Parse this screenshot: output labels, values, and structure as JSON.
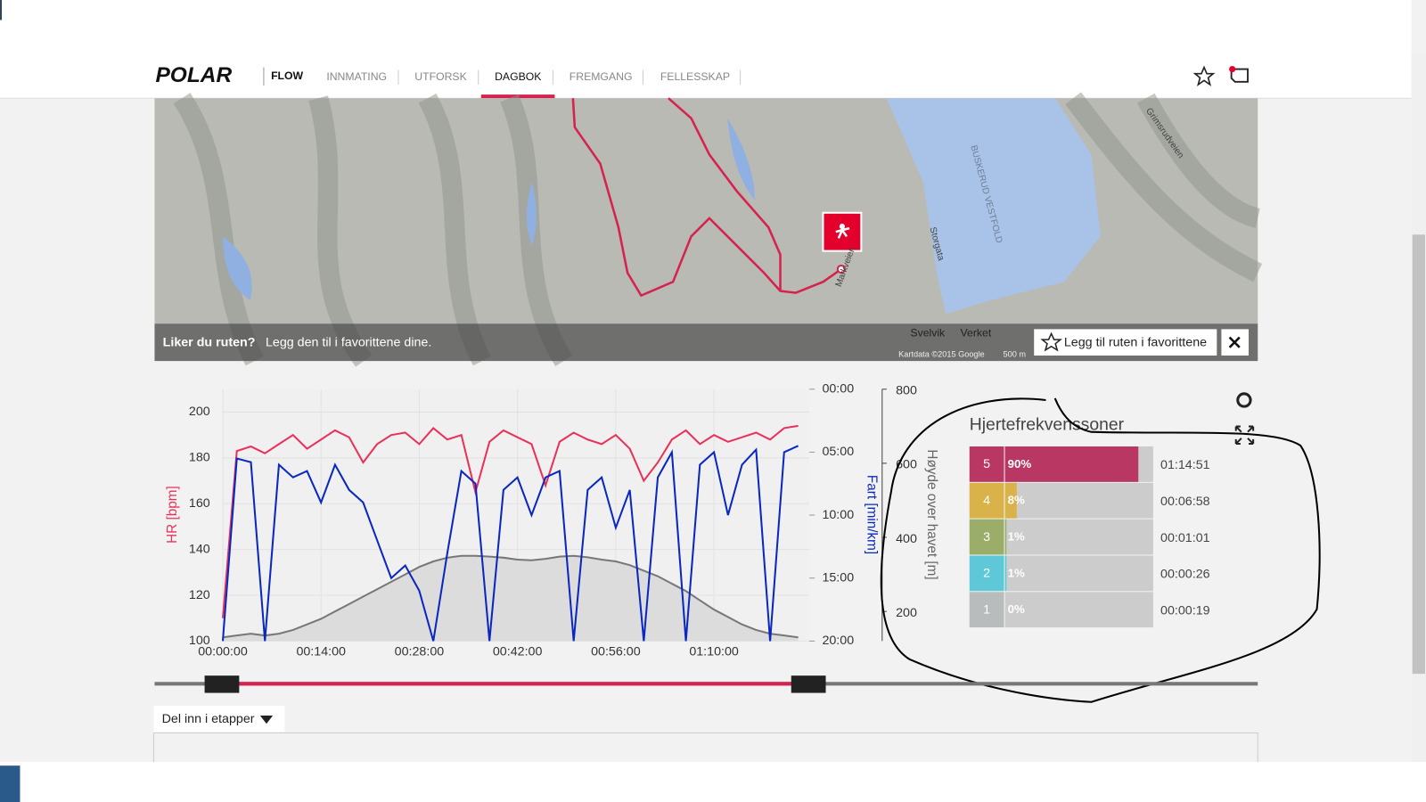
{
  "nav": {
    "logo": "POLAR",
    "product": "FLOW",
    "items": [
      "INNMATING",
      "UTFORSK",
      "DAGBOK",
      "FREMGANG",
      "FELLESSKAP"
    ],
    "active": 2
  },
  "map": {
    "prompt_bold": "Liker du ruten?",
    "prompt": "Legg den til i favorittene dine.",
    "button": "Legg til ruten i favorittene",
    "places": [
      "Svelvik",
      "Verket"
    ],
    "roads": [
      "Storgata",
      "Markveien",
      "Grimsrudveien"
    ],
    "border": "BUSKERUD VESTFOLD",
    "copyright": "Kartdata ©2015 Google",
    "scale": "500 m"
  },
  "chart": {
    "type": "line",
    "x": [
      0,
      2,
      4,
      6,
      8,
      10,
      12,
      14,
      16,
      18,
      20,
      22,
      24,
      26,
      28,
      30,
      32,
      34,
      36,
      38,
      40,
      42,
      44,
      46,
      48,
      50,
      52,
      54,
      56,
      58,
      60,
      62,
      64,
      66,
      68,
      70,
      72,
      74,
      76,
      78,
      80,
      82
    ],
    "xlim": [
      0,
      83.6
    ],
    "xticks": [
      {
        "value": 0,
        "label": "00:00:00"
      },
      {
        "value": 14,
        "label": "00:14:00"
      },
      {
        "value": 28,
        "label": "00:28:00"
      },
      {
        "value": 42,
        "label": "00:42:00"
      },
      {
        "value": 56,
        "label": "00:56:00"
      },
      {
        "value": 70,
        "label": "01:10:00"
      }
    ],
    "ylim": [
      100,
      210
    ],
    "yticks": [
      100,
      120,
      140,
      160,
      180,
      200
    ],
    "ylabel": "HR [bpm]",
    "y2lim": [
      0,
      20
    ],
    "y2_inverted": true,
    "y2ticks": [
      {
        "value": 0,
        "label": "00:00"
      },
      {
        "value": 5,
        "label": "05:00"
      },
      {
        "value": 10,
        "label": "10:00"
      },
      {
        "value": 15,
        "label": "15:00"
      },
      {
        "value": 20,
        "label": "20:00"
      }
    ],
    "y2label": "Fart [min/km]",
    "y3lim": [
      120,
      800
    ],
    "y3ticks": [
      200,
      400,
      600,
      800
    ],
    "y3label": "Høyde over havet [m]",
    "series": [
      {
        "color": "#e8325a",
        "values": [
          110,
          183,
          185,
          182,
          186,
          190,
          184,
          188,
          192,
          189,
          178,
          186,
          190,
          191,
          186,
          193,
          188,
          190,
          165,
          187,
          192,
          189,
          186,
          168,
          187,
          191,
          188,
          186,
          190,
          184,
          170,
          178,
          188,
          192,
          186,
          190,
          187,
          189,
          191,
          188,
          193,
          194
        ]
      },
      {
        "axis": "y2",
        "color": "#0a28c0",
        "values": [
          20,
          5.5,
          5.8,
          20,
          6,
          7,
          6.5,
          9,
          6,
          8,
          9,
          12,
          15,
          14,
          16,
          20,
          13,
          6.5,
          7.5,
          20,
          8,
          7,
          10,
          7,
          6.5,
          20,
          8,
          7,
          11,
          8,
          20,
          7,
          5,
          20,
          6,
          5,
          10,
          6,
          4.8,
          20,
          5,
          4.5
        ]
      },
      {
        "axis": "y3",
        "color": "#777777",
        "fill": "#dcdcdc",
        "values": [
          130,
          135,
          140,
          135,
          140,
          150,
          165,
          180,
          200,
          220,
          240,
          260,
          280,
          300,
          320,
          335,
          345,
          350,
          350,
          348,
          345,
          340,
          338,
          342,
          348,
          350,
          346,
          340,
          335,
          325,
          310,
          295,
          275,
          255,
          230,
          205,
          185,
          165,
          150,
          140,
          135,
          130
        ]
      }
    ]
  },
  "zones": {
    "title": "Hjertefrekvenssoner",
    "rows": [
      {
        "zone": "5",
        "percent": 90,
        "percent_label": "90%",
        "time": "01:14:51",
        "color": "#b93763"
      },
      {
        "zone": "4",
        "percent": 8,
        "percent_label": "8%",
        "time": "00:06:58",
        "color": "#d9b24a"
      },
      {
        "zone": "3",
        "percent": 1,
        "percent_label": "1%",
        "time": "00:01:01",
        "color": "#9aae6a"
      },
      {
        "zone": "2",
        "percent": 1,
        "percent_label": "1%",
        "time": "00:00:26",
        "color": "#5ec8d8"
      },
      {
        "zone": "1",
        "percent": 0,
        "percent_label": "0%",
        "time": "00:00:19",
        "color": "#b9bcbc"
      }
    ]
  },
  "split": "Del inn i etapper"
}
